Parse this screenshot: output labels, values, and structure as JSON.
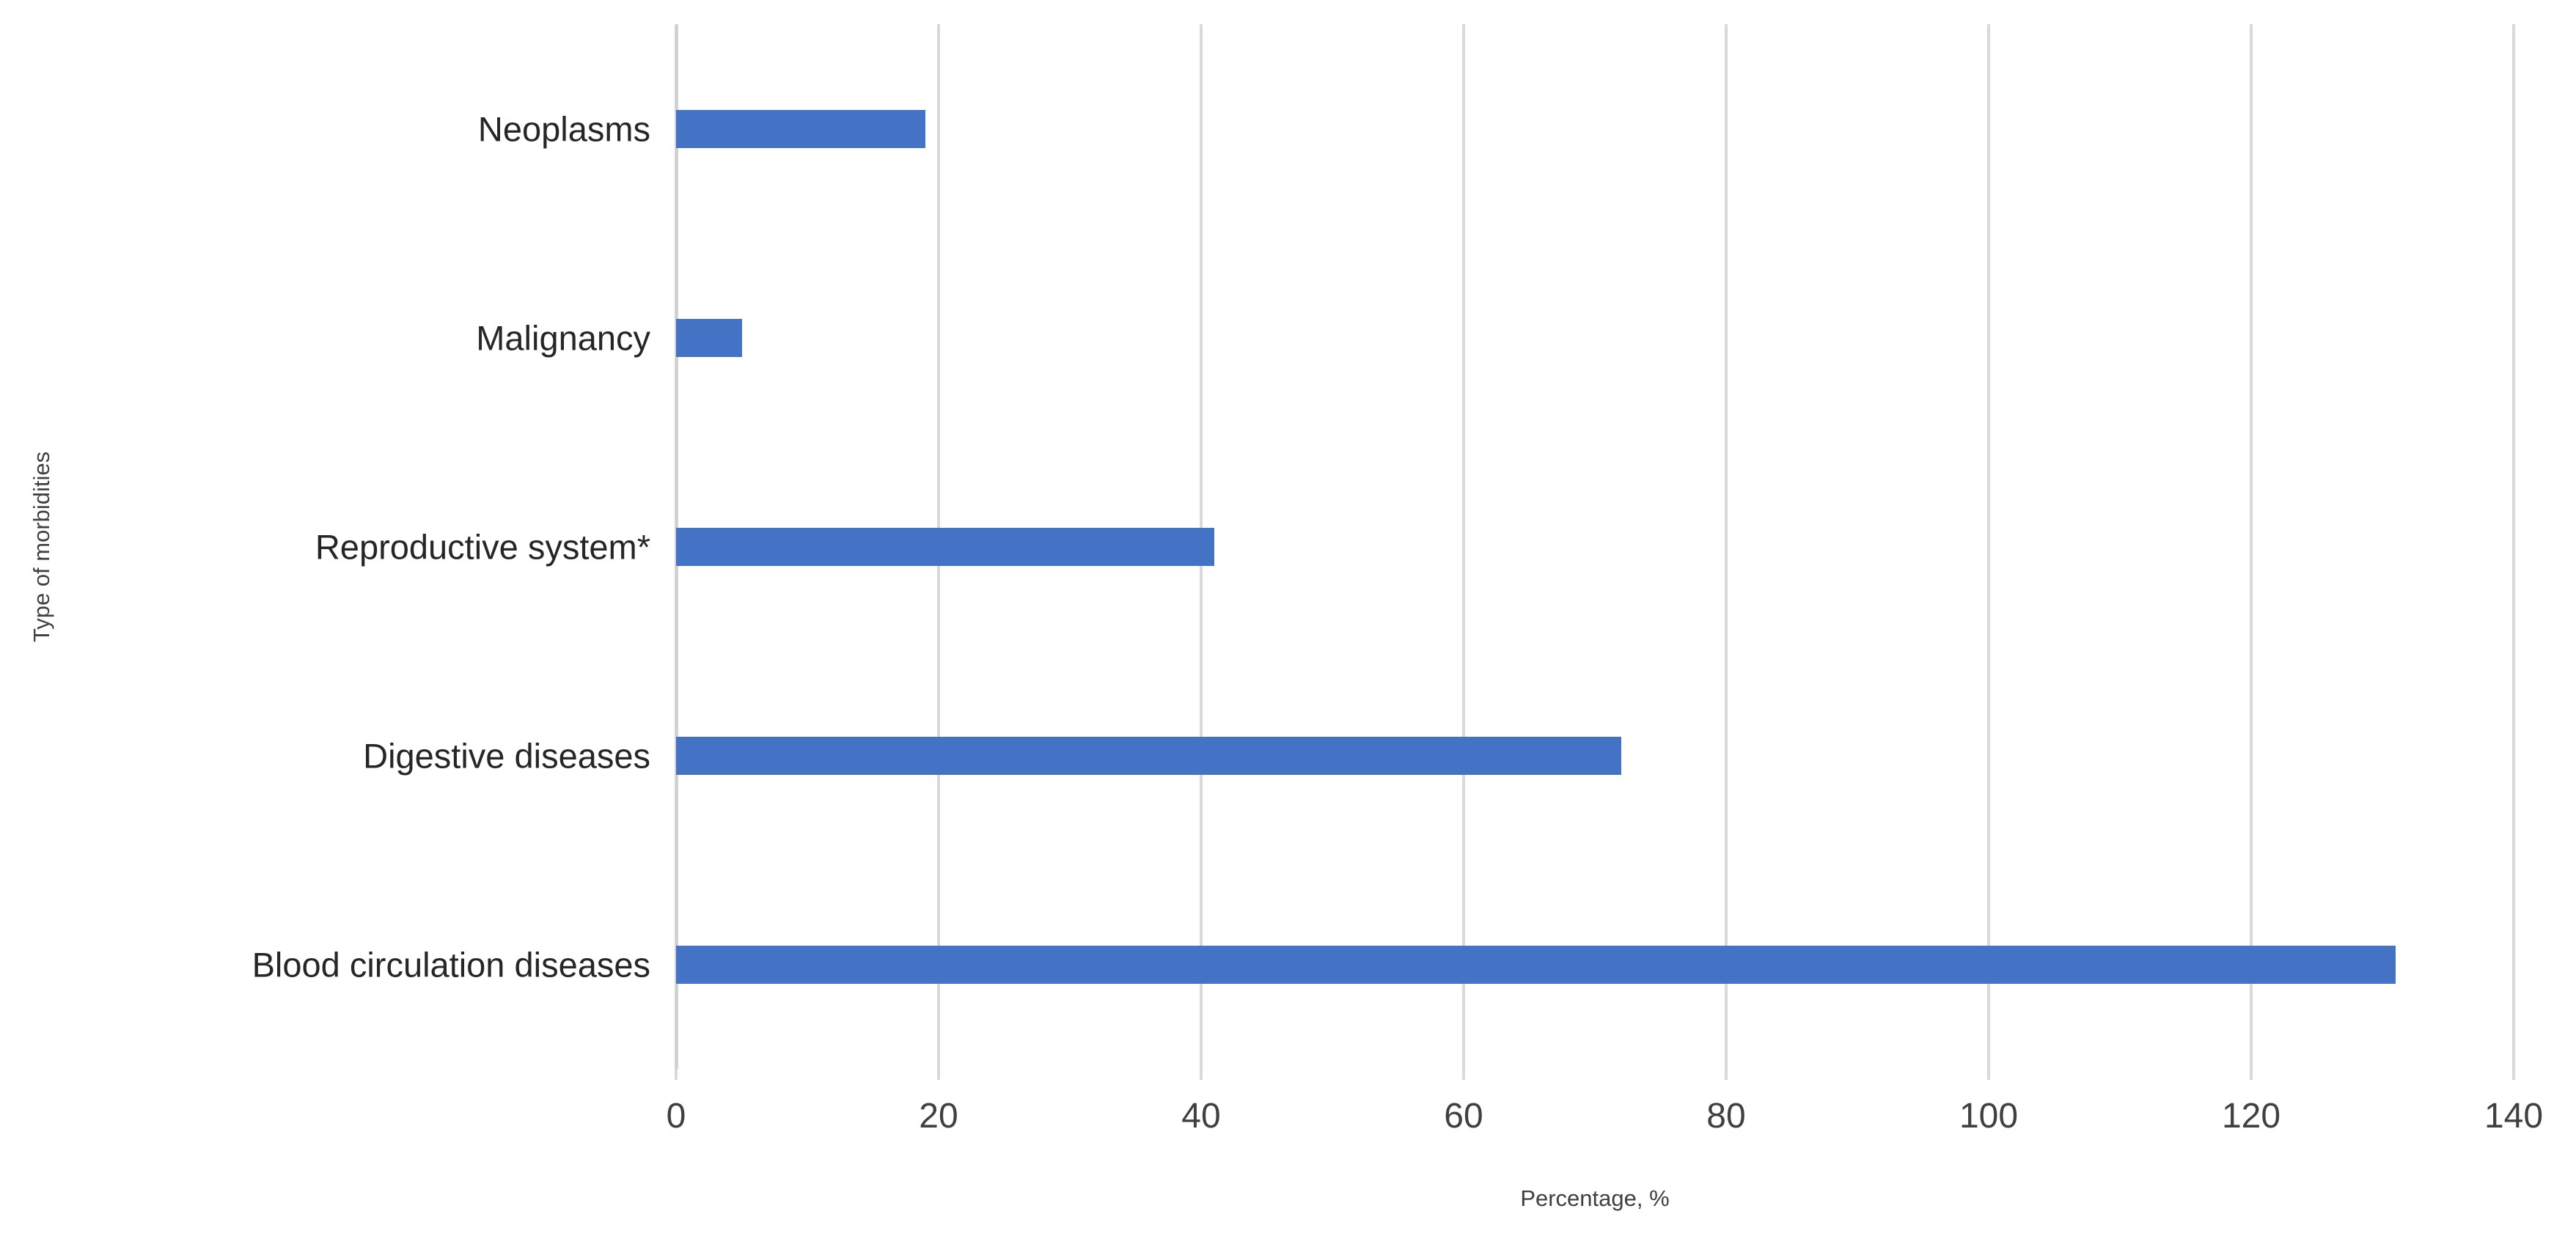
{
  "chart_data": {
    "type": "bar",
    "orientation": "horizontal",
    "title": "",
    "xlabel": "Percentage, %",
    "ylabel": "Type of morbidities",
    "categories": [
      "Neoplasms",
      "Malignancy",
      "Reproductive system*",
      "Digestive diseases",
      "Blood circulation diseases"
    ],
    "values": [
      19,
      5,
      41,
      72,
      131
    ],
    "xlim": [
      0,
      140
    ],
    "xticks": [
      0,
      20,
      40,
      60,
      80,
      100,
      120,
      140
    ],
    "bar_color": "#4472C4",
    "gridline_color": "#D9D9D9",
    "axis_line_color": "#D2D2D2",
    "label_color": "#262626",
    "tick_label_color": "#404040",
    "grid": true,
    "legend": false,
    "background": "#FFFFFF"
  }
}
